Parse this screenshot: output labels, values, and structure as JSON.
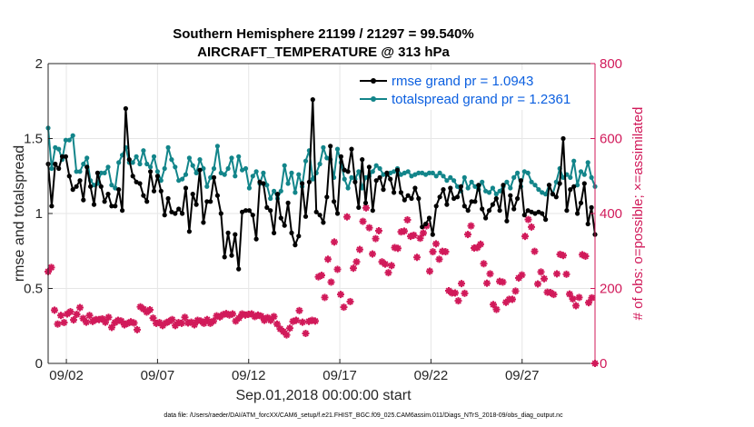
{
  "chart_data": {
    "type": "line",
    "title": "Southern Hemisphere 21199 / 21297 = 99.540%",
    "subtitle": "AIRCRAFT_TEMPERATURE @ 313 hPa",
    "xlabel": "Sep.01,2018 00:00:00 start",
    "ylabel": "rmse and totalspread",
    "y2label": "# of obs: o=possible; ×=assimilated",
    "footnote": "data file: /Users/raeder/DAI/ATM_forcXX/CAM6_setup/f.e21.FHIST_BGC.f09_025.CAM6assim.011/Diags_NTrS_2018-09/obs_diag_output.nc",
    "xlim": [
      1.0,
      31.0
    ],
    "ylim": [
      0,
      2
    ],
    "y2lim": [
      0,
      800
    ],
    "xticks": [
      2,
      7,
      12,
      17,
      22,
      27
    ],
    "xtick_labels": [
      "09/02",
      "09/07",
      "09/12",
      "09/17",
      "09/22",
      "09/27"
    ],
    "yticks": [
      0,
      0.5,
      1,
      1.5,
      2
    ],
    "ytick_labels": [
      "0",
      "0.5",
      "1",
      "1.5",
      "2"
    ],
    "y2ticks": [
      0,
      200,
      400,
      600,
      800
    ],
    "y2tick_labels": [
      "0",
      "200",
      "400",
      "600",
      "800"
    ],
    "colors": {
      "rmse": "#000000",
      "spread": "#12858a",
      "obs": "#d11a5a",
      "legend_text": "#0b5fe0",
      "grid": "#e6e6e6"
    },
    "series": [
      {
        "name": "rmse grand pr = 1.0943",
        "axis": "left",
        "values": [
          1.33,
          1.05,
          1.33,
          1.3,
          1.38,
          1.38,
          1.25,
          1.16,
          1.18,
          1.22,
          1.09,
          1.31,
          1.18,
          1.06,
          1.27,
          1.18,
          1.08,
          1.13,
          1.05,
          1.05,
          1.16,
          1.02,
          1.7,
          1.36,
          1.25,
          1.21,
          1.2,
          1.12,
          1.08,
          1.28,
          1.15,
          1.25,
          1.15,
          0.99,
          1.1,
          1.01,
          1.0,
          1.03,
          1.0,
          1.17,
          0.88,
          1.13,
          1.06,
          1.29,
          0.94,
          1.08,
          1.08,
          1.24,
          1.12,
          1.0,
          0.71,
          0.87,
          0.72,
          0.86,
          0.63,
          1.01,
          1.02,
          1.02,
          0.99,
          0.83,
          1.21,
          1.2,
          1.04,
          1.02,
          0.87,
          1.13,
          0.97,
          0.92,
          1.07,
          0.87,
          0.79,
          0.85,
          1.2,
          0.98,
          1.21,
          1.76,
          1.01,
          0.99,
          0.94,
          1.11,
          1.45,
          1.08,
          1.0,
          1.38,
          1.29,
          1.28,
          1.43,
          1.21,
          1.04,
          1.36,
          1.07,
          1.31,
          1.02,
          1.22,
          1.24,
          1.16,
          1.27,
          1.23,
          1.14,
          1.29,
          1.14,
          1.09,
          1.12,
          1.1,
          1.17,
          1.1,
          0.91,
          0.93,
          0.97,
          0.86,
          1.05,
          1.11,
          1.16,
          1.06,
          1.17,
          1.1,
          1.11,
          1.18,
          1.05,
          1.02,
          1.08,
          1.08,
          1.19,
          1.03,
          0.97,
          1.02,
          1.06,
          1.1,
          1.02,
          1.19,
          0.95,
          1.12,
          1.03,
          1.1,
          1.22,
          0.99,
          1.02,
          1.01,
          1.0,
          1.01,
          1.0,
          0.96,
          1.19,
          1.13,
          1.11,
          1.2,
          1.5,
          1.02,
          1.16,
          1.18,
          1.0,
          1.07,
          1.2,
          0.93,
          1.04,
          0.86
        ]
      },
      {
        "name": "totalspread grand pr = 1.2361",
        "axis": "left",
        "values": [
          1.57,
          1.3,
          1.44,
          1.43,
          1.36,
          1.49,
          1.49,
          1.52,
          1.28,
          1.28,
          1.33,
          1.37,
          1.22,
          1.19,
          1.2,
          1.27,
          1.27,
          1.31,
          1.19,
          1.17,
          1.34,
          1.39,
          1.44,
          1.34,
          1.34,
          1.38,
          1.33,
          1.42,
          1.33,
          1.31,
          1.38,
          1.28,
          1.22,
          1.3,
          1.44,
          1.36,
          1.31,
          1.22,
          1.23,
          1.26,
          1.37,
          1.32,
          1.27,
          1.36,
          1.3,
          1.18,
          1.24,
          1.3,
          1.45,
          1.27,
          1.26,
          1.3,
          1.37,
          1.25,
          1.38,
          1.29,
          1.3,
          1.17,
          1.25,
          1.28,
          1.2,
          1.27,
          1.19,
          1.1,
          1.15,
          1.1,
          1.15,
          1.32,
          1.2,
          1.27,
          1.14,
          1.26,
          1.18,
          1.35,
          1.42,
          1.23,
          1.27,
          1.33,
          1.44,
          1.37,
          1.36,
          1.24,
          1.43,
          1.34,
          1.23,
          1.17,
          1.24,
          1.23,
          1.28,
          1.17,
          1.24,
          1.25,
          1.28,
          1.32,
          1.3,
          1.26,
          1.26,
          1.27,
          1.28,
          1.3,
          1.26,
          1.27,
          1.28,
          1.25,
          1.26,
          1.27,
          1.27,
          1.26,
          1.27,
          1.27,
          1.25,
          1.27,
          1.25,
          1.22,
          1.24,
          1.22,
          1.18,
          1.15,
          1.24,
          1.17,
          1.21,
          1.18,
          1.16,
          1.21,
          1.15,
          1.14,
          1.17,
          1.13,
          1.15,
          1.18,
          1.21,
          1.17,
          1.24,
          1.27,
          1.18,
          1.28,
          1.27,
          1.21,
          1.19,
          1.16,
          1.14,
          1.13,
          1.19,
          1.13,
          1.21,
          1.3,
          1.24,
          1.26,
          1.24,
          1.35,
          1.19,
          1.28,
          1.26,
          1.34,
          1.24,
          1.18
        ]
      },
      {
        "name": "# assimilated",
        "axis": "right",
        "values": [
          245,
          256,
          142,
          105,
          128,
          109,
          132,
          138,
          116,
          131,
          149,
          120,
          110,
          128,
          112,
          117,
          117,
          119,
          110,
          123,
          96,
          109,
          115,
          113,
          103,
          107,
          111,
          108,
          90,
          151,
          145,
          137,
          143,
          121,
          107,
          109,
          101,
          108,
          112,
          117,
          101,
          109,
          107,
          123,
          108,
          110,
          103,
          115,
          113,
          107,
          117,
          107,
          113,
          127,
          124,
          130,
          133,
          129,
          132,
          113,
          121,
          132,
          129,
          131,
          132,
          125,
          129,
          126,
          115,
          122,
          115,
          125,
          105,
          92,
          85,
          76,
          94,
          112,
          115,
          141,
          110,
          80,
          112,
          115,
          113,
          231,
          235,
          176,
          278,
          217,
          324,
          251,
          184,
          150,
          391,
          165,
          254,
          271,
          304,
          379,
          415,
          362,
          292,
          333,
          354,
          271,
          265,
          242,
          261,
          309,
          307,
          351,
          353,
          383,
          339,
          342,
          283,
          334,
          348,
          367,
          246,
          298,
          319,
          278,
          299,
          298,
          194,
          188,
          188,
          167,
          213,
          187,
          344,
          367,
          308,
          309,
          318,
          266,
          214,
          239,
          157,
          144,
          219,
          217,
          163,
          171,
          171,
          193,
          228,
          236,
          339,
          384,
          364,
          299,
          212,
          244,
          226,
          190,
          189,
          184,
          239,
          291,
          288,
          238,
          185,
          172,
          154,
          176,
          290,
          286,
          162,
          175,
          0
        ]
      }
    ]
  }
}
